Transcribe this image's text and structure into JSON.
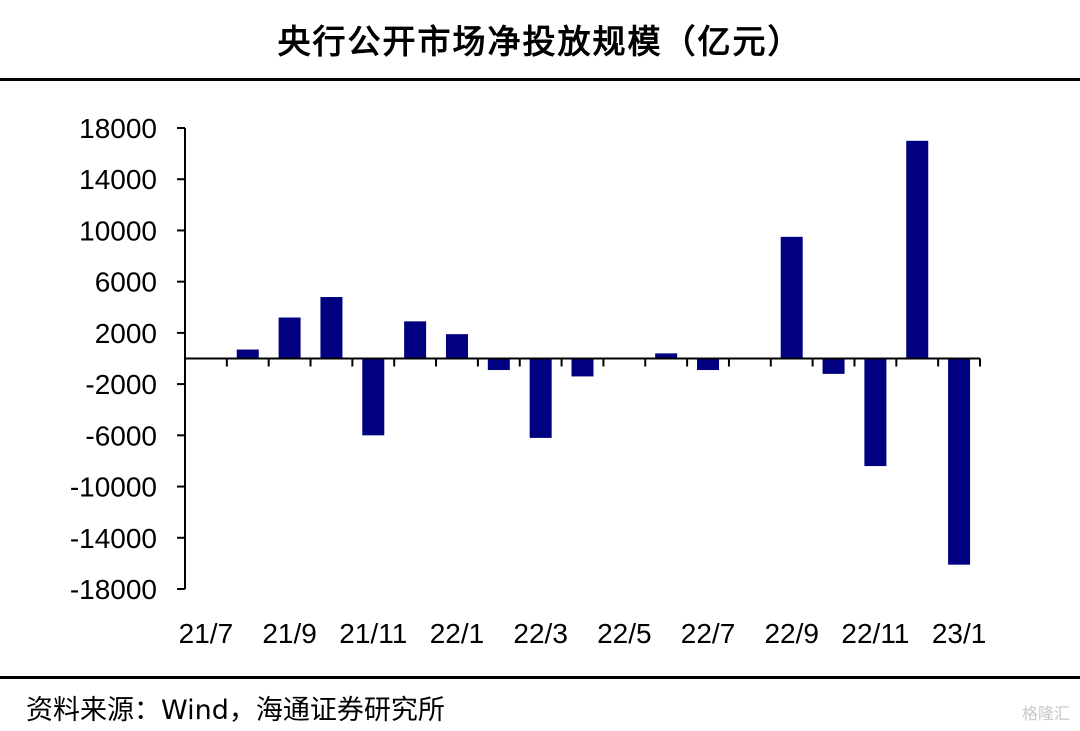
{
  "title": "央行公开市场净投放规模（亿元）",
  "source": "资料来源：Wind，海通证券研究所",
  "watermark": "格隆汇",
  "colors": {
    "bar": "#000080",
    "axis": "#000000"
  },
  "chart_data": {
    "type": "bar",
    "title": "央行公开市场净投放规模（亿元）",
    "xlabel": "",
    "ylabel": "",
    "ylim": [
      -18000,
      18000
    ],
    "yticks": [
      18000,
      14000,
      10000,
      6000,
      2000,
      -2000,
      -6000,
      -10000,
      -14000,
      -18000
    ],
    "categories": [
      "21/7",
      "21/8",
      "21/9",
      "21/10",
      "21/11",
      "21/12",
      "22/1",
      "22/2",
      "22/3",
      "22/4",
      "22/5",
      "22/6",
      "22/7",
      "22/8",
      "22/9",
      "22/10",
      "22/11",
      "22/12",
      "23/1"
    ],
    "x_tick_labels": [
      "21/7",
      "21/9",
      "21/11",
      "22/1",
      "22/3",
      "22/5",
      "22/7",
      "22/9",
      "22/11",
      "23/1"
    ],
    "values": [
      0,
      700,
      3200,
      4800,
      -6000,
      2900,
      1900,
      -900,
      -6200,
      -1400,
      0,
      400,
      -900,
      0,
      9500,
      -1200,
      -8400,
      17000,
      -16100
    ],
    "grid": false,
    "legend": "none"
  }
}
